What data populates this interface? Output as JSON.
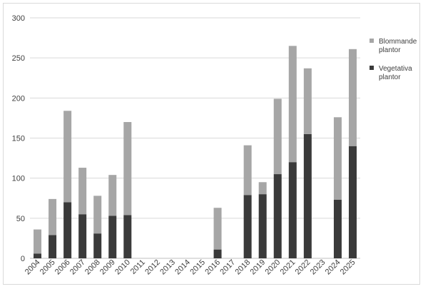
{
  "chart_data": {
    "type": "bar",
    "stacked": true,
    "categories": [
      "2004",
      "2005",
      "2006",
      "2007",
      "2008",
      "2009",
      "2010",
      "2011",
      "2012",
      "2013",
      "2014",
      "2015",
      "2016",
      "2017",
      "2018",
      "2019",
      "2020",
      "2021",
      "2022",
      "2023",
      "2024",
      "2025"
    ],
    "series": [
      {
        "name": "Vegetativa plantor",
        "color": "#3a3a3a",
        "values": [
          6,
          29,
          70,
          55,
          31,
          53,
          54,
          0,
          0,
          0,
          0,
          0,
          11,
          0,
          79,
          80,
          105,
          120,
          155,
          0,
          73,
          140
        ]
      },
      {
        "name": "Blommande plantor",
        "color": "#a6a6a6",
        "values": [
          30,
          45,
          114,
          58,
          47,
          51,
          116,
          0,
          0,
          0,
          0,
          0,
          52,
          0,
          62,
          15,
          94,
          145,
          82,
          0,
          103,
          121
        ]
      }
    ],
    "legend_order": [
      "Blommande plantor",
      "Vegetativa plantor"
    ],
    "legend_lines": {
      "Blommande plantor": [
        "Blommande",
        "plantor"
      ],
      "Vegetativa plantor": [
        "Vegetativa",
        "plantor"
      ]
    },
    "ylim": [
      0,
      300
    ],
    "yticks": [
      0,
      50,
      100,
      150,
      200,
      250,
      300
    ],
    "grid": true,
    "legend_position": "right",
    "xlabel": "",
    "ylabel": "",
    "title": ""
  }
}
